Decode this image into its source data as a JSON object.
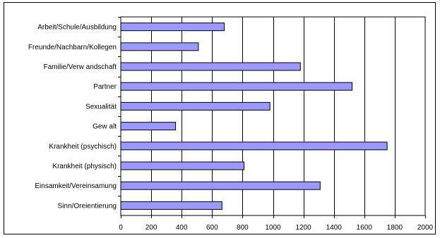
{
  "chart_data": {
    "type": "bar",
    "orientation": "horizontal",
    "categories": [
      "Arbeit/Schule/Ausbildung",
      "Freunde/Nachbarn/Kollegen",
      "Familie/Verw andschaft",
      "Partner",
      "Sexualität",
      "Gew alt",
      "Krankheit (psychisch)",
      "Krankheit (physisch)",
      "Einsamkeit/Vereinsamung",
      "Sinn/Oreientierung"
    ],
    "values": [
      680,
      510,
      1180,
      1520,
      980,
      360,
      1750,
      810,
      1310,
      665
    ],
    "title": "",
    "xlabel": "",
    "ylabel": "",
    "xlim": [
      0,
      2000
    ],
    "xticks": [
      0,
      200,
      400,
      600,
      800,
      1000,
      1200,
      1400,
      1600,
      1800,
      2000
    ],
    "xtick_labels": [
      "0",
      "200",
      "400",
      "600",
      "800",
      "1000",
      "1200",
      "1400",
      "1600",
      "1800",
      "2000"
    ],
    "grid": "vertical major gridlines",
    "legend": "none",
    "colors": {
      "bar_fill": "#9999ff",
      "bar_stroke": "#000000",
      "gridline": "#000000",
      "plot_background": "#ffffff"
    }
  }
}
